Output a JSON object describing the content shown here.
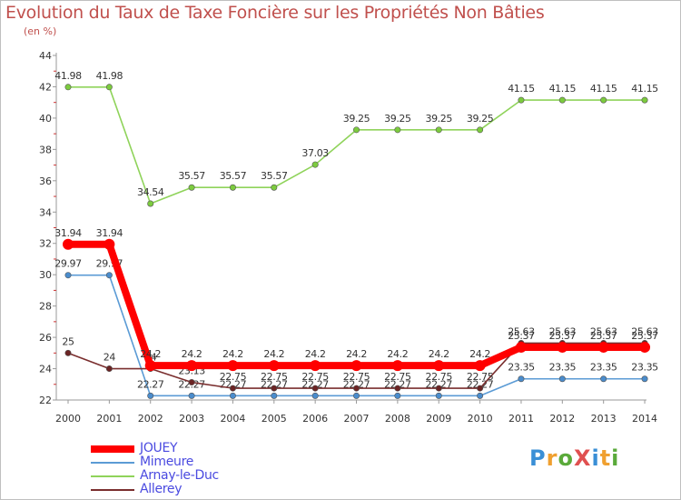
{
  "title": "Evolution du Taux de Taxe Foncière sur les Propriétés Non Bâties",
  "subtitle": "(en %)",
  "logo_text": "ProXiti",
  "chart_data": {
    "type": "line",
    "title": "Evolution du Taux de Taxe Foncière sur les Propriétés Non Bâties",
    "ylabel": "(en %)",
    "xlabel": "",
    "ylim": [
      22,
      44
    ],
    "grid": false,
    "categories": [
      "2000",
      "2001",
      "2002",
      "2003",
      "2004",
      "2005",
      "2006",
      "2007",
      "2008",
      "2009",
      "2010",
      "2011",
      "2012",
      "2013",
      "2014"
    ],
    "yticks": [
      "22",
      "24",
      "26",
      "28",
      "30",
      "32",
      "34",
      "36",
      "38",
      "40",
      "42",
      "44"
    ],
    "series": [
      {
        "name": "Arnay-le-Duc",
        "color": "#8fd35a",
        "marker": "#7ccb3e",
        "values": [
          41.98,
          41.98,
          34.54,
          35.57,
          35.57,
          35.57,
          37.03,
          39.25,
          39.25,
          39.25,
          39.25,
          41.15,
          41.15,
          41.15,
          41.15
        ],
        "labels": [
          "41.98",
          "41.98",
          "34.54",
          "35.57",
          "35.57",
          "35.57",
          "37.03",
          "39.25",
          "39.25",
          "39.25",
          "39.25",
          "41.15",
          "41.15",
          "41.15",
          "41.15"
        ]
      },
      {
        "name": "Mimeure",
        "color": "#5b9bd5",
        "marker": "#4a8ccc",
        "values": [
          29.97,
          29.97,
          22.27,
          22.27,
          22.27,
          22.27,
          22.27,
          22.27,
          22.27,
          22.27,
          22.27,
          23.35,
          23.35,
          23.35,
          23.35
        ],
        "labels": [
          "29.97",
          "29.97",
          "22.27",
          "22.27",
          "22.27",
          "22.27",
          "22.27",
          "22.27",
          "22.27",
          "22.27",
          "22.27",
          "23.35",
          "23.35",
          "23.35",
          "23.35"
        ]
      },
      {
        "name": "Allerey",
        "color": "#7a2e2e",
        "marker": "#6b2424",
        "values": [
          25,
          24,
          24,
          23.13,
          22.75,
          22.75,
          22.75,
          22.75,
          22.75,
          22.75,
          22.75,
          25.63,
          25.63,
          25.63,
          25.63
        ],
        "labels": [
          "25",
          "24",
          "24",
          "23.13",
          "22.75",
          "22.75",
          "22.75",
          "22.75",
          "22.75",
          "22.75",
          "22.75",
          "25.63",
          "25.63",
          "25.63",
          "25.63"
        ]
      },
      {
        "name": "JOUEY",
        "color": "#ff0000",
        "marker": "#ff0000",
        "values": [
          31.94,
          31.94,
          24.2,
          24.2,
          24.2,
          24.2,
          24.2,
          24.2,
          24.2,
          24.2,
          24.2,
          25.37,
          25.37,
          25.37,
          25.37
        ],
        "labels": [
          "31.94",
          "31.94",
          "24.2",
          "24.2",
          "24.2",
          "24.2",
          "24.2",
          "24.2",
          "24.2",
          "24.2",
          "24.2",
          "25.37",
          "25.37",
          "25.37",
          "25.37"
        ]
      }
    ],
    "legend_order": [
      "JOUEY",
      "Mimeure",
      "Arnay-le-Duc",
      "Allerey"
    ],
    "legend_placement": "bottom-left"
  }
}
